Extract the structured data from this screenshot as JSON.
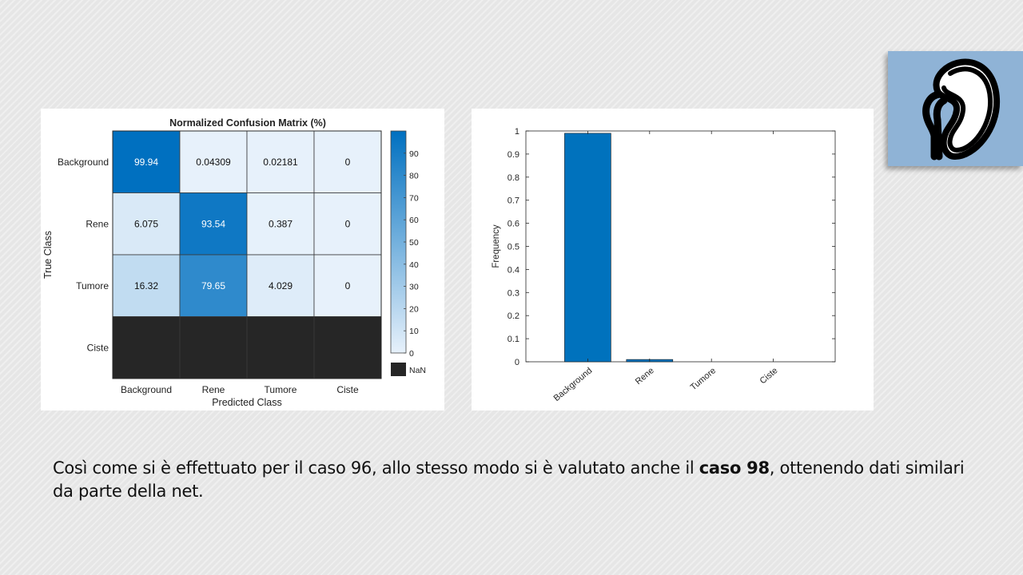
{
  "chart_data": [
    {
      "type": "heatmap",
      "title": "Normalized Confusion Matrix (%)",
      "xlabel": "Predicted Class",
      "ylabel": "True Class",
      "x_categories": [
        "Background",
        "Rene",
        "Tumore",
        "Ciste"
      ],
      "y_categories": [
        "Background",
        "Rene",
        "Tumore",
        "Ciste"
      ],
      "values": [
        [
          "99.94",
          "0.04309",
          "0.02181",
          "0"
        ],
        [
          "6.075",
          "93.54",
          "0.387",
          "0"
        ],
        [
          "16.32",
          "79.65",
          "4.029",
          "0"
        ],
        [
          null,
          null,
          null,
          null
        ]
      ],
      "colorbar_ticks": [
        "0",
        "10",
        "20",
        "30",
        "40",
        "50",
        "60",
        "70",
        "80",
        "90"
      ],
      "colorbar_range": [
        0,
        100
      ],
      "nan_label": "NaN",
      "colors": {
        "low": "#e7f1fb",
        "high": "#0070c0",
        "nan": "#262626"
      }
    },
    {
      "type": "bar",
      "categories": [
        "Background",
        "Rene",
        "Tumore",
        "Ciste"
      ],
      "values": [
        0.99,
        0.01,
        0,
        0
      ],
      "xlabel": "",
      "ylabel": "Frequency",
      "ylim": [
        0,
        1
      ],
      "y_ticks": [
        "0",
        "0.1",
        "0.2",
        "0.3",
        "0.4",
        "0.5",
        "0.6",
        "0.7",
        "0.8",
        "0.9",
        "1"
      ],
      "bar_color": "#0072bd"
    }
  ],
  "caption": {
    "before": "Così come si è effettuato per il caso 96, allo stesso modo si è valutato anche il ",
    "bold": "caso 98",
    "after": ", ottenendo dati similari da parte della net."
  },
  "logo": {
    "icon": "kidney-icon",
    "background": "#8fb3d6"
  }
}
